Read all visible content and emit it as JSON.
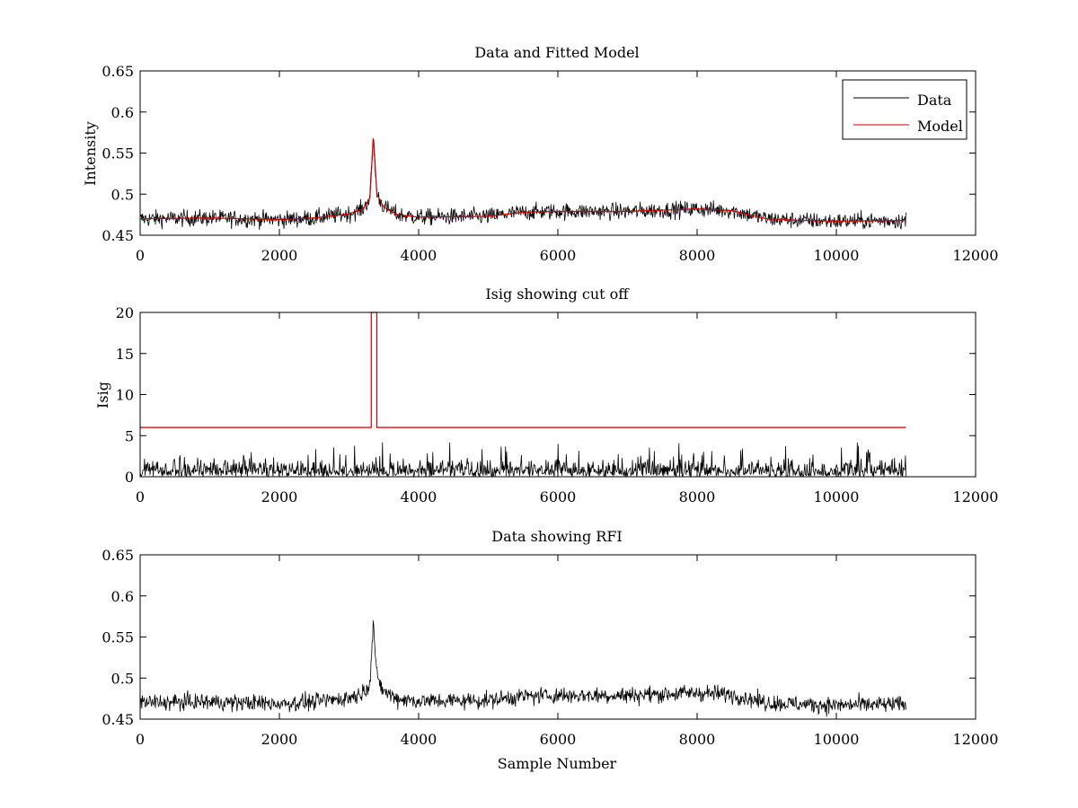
{
  "colors": {
    "data": "#000000",
    "model": "#cc0000",
    "axis": "#000000",
    "background": "#ffffff"
  },
  "chart_data": [
    {
      "type": "line",
      "title": "Data and Fitted Model",
      "xlabel": "",
      "ylabel": "Intensity",
      "xlim": [
        0,
        12000
      ],
      "ylim": [
        0.45,
        0.65
      ],
      "xticks": [
        0,
        2000,
        4000,
        6000,
        8000,
        10000,
        12000
      ],
      "xtick_labels": [
        "0",
        "2000",
        "4000",
        "6000",
        "8000",
        "10000",
        "12000"
      ],
      "yticks": [
        0.45,
        0.5,
        0.55,
        0.6,
        0.65
      ],
      "ytick_labels": [
        "0.45",
        "0.5",
        "0.55",
        "0.6",
        "0.65"
      ],
      "legend": {
        "position": "top-right",
        "entries": [
          "Data",
          "Model"
        ]
      },
      "series": [
        {
          "name": "Data",
          "color": "#000000",
          "noise": 0.005,
          "x": [
            0,
            1000,
            2000,
            2500,
            3000,
            3200,
            3300,
            3350,
            3400,
            3500,
            3700,
            4000,
            5000,
            5500,
            6000,
            7000,
            8000,
            8500,
            9000,
            9500,
            10000,
            11000
          ],
          "y": [
            0.47,
            0.471,
            0.469,
            0.471,
            0.476,
            0.482,
            0.495,
            0.568,
            0.5,
            0.484,
            0.475,
            0.472,
            0.473,
            0.478,
            0.479,
            0.479,
            0.482,
            0.48,
            0.47,
            0.468,
            0.467,
            0.468
          ]
        },
        {
          "name": "Model",
          "color": "#cc0000",
          "noise": 0,
          "x": [
            0,
            1000,
            2000,
            2500,
            3000,
            3200,
            3300,
            3350,
            3400,
            3500,
            3700,
            4000,
            5000,
            5500,
            6000,
            7000,
            8000,
            8500,
            9000,
            9500,
            10000,
            11000
          ],
          "y": [
            0.47,
            0.471,
            0.469,
            0.471,
            0.476,
            0.482,
            0.495,
            0.572,
            0.5,
            0.484,
            0.475,
            0.472,
            0.473,
            0.478,
            0.479,
            0.479,
            0.482,
            0.48,
            0.47,
            0.468,
            0.467,
            0.468
          ]
        }
      ]
    },
    {
      "type": "line",
      "title": "Isig showing cut off",
      "xlabel": "",
      "ylabel": "Isig",
      "xlim": [
        0,
        12000
      ],
      "ylim": [
        0,
        20
      ],
      "xticks": [
        0,
        2000,
        4000,
        6000,
        8000,
        10000,
        12000
      ],
      "xtick_labels": [
        "0",
        "2000",
        "4000",
        "6000",
        "8000",
        "10000",
        "12000"
      ],
      "yticks": [
        0,
        5,
        10,
        15,
        20
      ],
      "ytick_labels": [
        "0",
        "5",
        "10",
        "15",
        "20"
      ],
      "series": [
        {
          "name": "Isig",
          "color": "#000000",
          "noise_abs": 1.0,
          "max_spike": 4.2,
          "x": [
            0,
            11000
          ],
          "y": [
            0.8,
            0.8
          ]
        },
        {
          "name": "Cut off",
          "color": "#cc0000",
          "noise": 0,
          "step": true,
          "x": [
            0,
            3320,
            3320,
            3400,
            3400,
            11000
          ],
          "y": [
            6,
            6,
            20,
            20,
            6,
            6
          ]
        }
      ]
    },
    {
      "type": "line",
      "title": "Data showing RFI",
      "xlabel": "Sample Number",
      "ylabel": "",
      "xlim": [
        0,
        12000
      ],
      "ylim": [
        0.45,
        0.65
      ],
      "xticks": [
        0,
        2000,
        4000,
        6000,
        8000,
        10000,
        12000
      ],
      "xtick_labels": [
        "0",
        "2000",
        "4000",
        "6000",
        "8000",
        "10000",
        "12000"
      ],
      "yticks": [
        0.45,
        0.5,
        0.55,
        0.6,
        0.65
      ],
      "ytick_labels": [
        "0.45",
        "0.5",
        "0.55",
        "0.6",
        "0.65"
      ],
      "series": [
        {
          "name": "Data",
          "color": "#000000",
          "noise": 0.005,
          "x": [
            0,
            1000,
            2000,
            2500,
            3000,
            3200,
            3300,
            3350,
            3400,
            3500,
            3700,
            4000,
            5000,
            5500,
            6000,
            7000,
            8000,
            8500,
            9000,
            9500,
            10000,
            11000
          ],
          "y": [
            0.47,
            0.471,
            0.469,
            0.471,
            0.476,
            0.482,
            0.495,
            0.568,
            0.5,
            0.484,
            0.475,
            0.472,
            0.473,
            0.478,
            0.479,
            0.479,
            0.482,
            0.48,
            0.47,
            0.468,
            0.467,
            0.468
          ]
        }
      ]
    }
  ]
}
